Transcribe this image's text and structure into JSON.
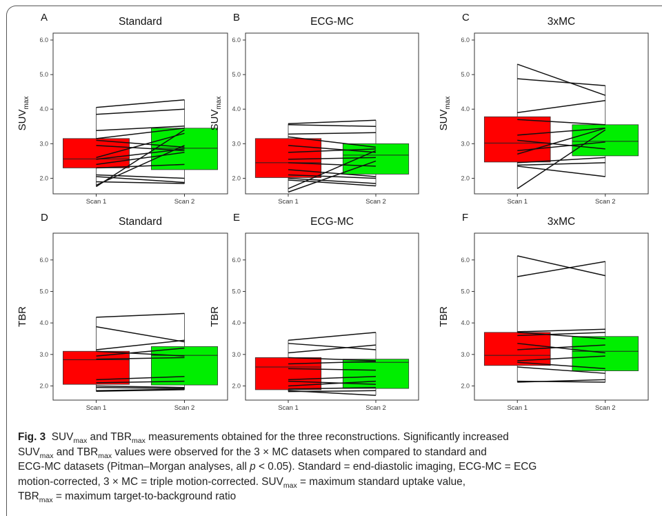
{
  "chart_data": [
    {
      "panel": "A",
      "title": "Standard",
      "type": "box+paired-lines",
      "ylabel": "SUV",
      "ylabel_sub": "max",
      "categories": [
        "Scan 1",
        "Scan 2"
      ],
      "yticks": [
        "2.0",
        "3.0",
        "4.0",
        "5.0",
        "6.0"
      ],
      "ylim": [
        1.55,
        6.2
      ],
      "boxes": [
        {
          "category": "Scan 1",
          "color": "#ff0000",
          "q1": 2.3,
          "median": 2.56,
          "q3": 3.15
        },
        {
          "category": "Scan 2",
          "color": "#00ee00",
          "q1": 2.25,
          "median": 2.87,
          "q3": 3.45
        }
      ],
      "pairs": [
        [
          4.05,
          4.27
        ],
        [
          3.85,
          4.0
        ],
        [
          3.38,
          3.51
        ],
        [
          3.15,
          3.45
        ],
        [
          3.1,
          2.9
        ],
        [
          2.95,
          2.8
        ],
        [
          2.6,
          3.3
        ],
        [
          2.55,
          2.85
        ],
        [
          2.4,
          2.75
        ],
        [
          2.3,
          2.4
        ],
        [
          1.8,
          2.95
        ],
        [
          1.76,
          3.4
        ],
        [
          2.1,
          2.0
        ],
        [
          2.05,
          1.88
        ],
        [
          1.9,
          1.85
        ]
      ]
    },
    {
      "panel": "B",
      "title": "ECG-MC",
      "type": "box+paired-lines",
      "ylabel": "SUV",
      "ylabel_sub": "max",
      "categories": [
        "Scan 1",
        "Scan 2"
      ],
      "yticks": [
        "2.0",
        "3.0",
        "4.0",
        "5.0",
        "6.0"
      ],
      "ylim": [
        1.55,
        6.2
      ],
      "boxes": [
        {
          "category": "Scan 1",
          "color": "#ff0000",
          "q1": 2.02,
          "median": 2.45,
          "q3": 3.15
        },
        {
          "category": "Scan 2",
          "color": "#00ee00",
          "q1": 2.12,
          "median": 2.67,
          "q3": 3.0
        }
      ],
      "pairs": [
        [
          3.58,
          3.68
        ],
        [
          3.55,
          3.5
        ],
        [
          3.28,
          3.32
        ],
        [
          3.2,
          2.9
        ],
        [
          2.95,
          2.75
        ],
        [
          2.75,
          2.85
        ],
        [
          2.55,
          2.6
        ],
        [
          2.45,
          2.35
        ],
        [
          2.25,
          2.05
        ],
        [
          2.1,
          2.0
        ],
        [
          2.0,
          1.85
        ],
        [
          1.95,
          1.78
        ],
        [
          1.7,
          2.8
        ],
        [
          1.6,
          2.5
        ]
      ]
    },
    {
      "panel": "C",
      "title": "3xMC",
      "type": "box+paired-lines",
      "ylabel": "SUV",
      "ylabel_sub": "max",
      "categories": [
        "Scan 1",
        "Scan 2"
      ],
      "yticks": [
        "2.0",
        "3.0",
        "4.0",
        "5.0",
        "6.0"
      ],
      "ylim": [
        1.55,
        6.2
      ],
      "boxes": [
        {
          "category": "Scan 1",
          "color": "#ff0000",
          "q1": 2.47,
          "median": 3.02,
          "q3": 3.78
        },
        {
          "category": "Scan 2",
          "color": "#00ee00",
          "q1": 2.65,
          "median": 3.07,
          "q3": 3.55
        }
      ],
      "pairs": [
        [
          5.3,
          4.4
        ],
        [
          4.88,
          4.68
        ],
        [
          3.9,
          4.25
        ],
        [
          3.7,
          3.55
        ],
        [
          3.25,
          3.45
        ],
        [
          2.8,
          3.05
        ],
        [
          2.7,
          3.45
        ],
        [
          2.45,
          2.6
        ],
        [
          2.38,
          2.45
        ],
        [
          2.35,
          2.05
        ],
        [
          3.1,
          2.85
        ],
        [
          1.7,
          3.4
        ]
      ]
    },
    {
      "panel": "D",
      "title": "Standard",
      "type": "box+paired-lines",
      "ylabel": "TBR",
      "categories": [
        "Scan 1",
        "Scan 2"
      ],
      "yticks": [
        "2.0",
        "3.0",
        "4.0",
        "5.0",
        "6.0"
      ],
      "ylim": [
        1.55,
        6.85
      ],
      "boxes": [
        {
          "category": "Scan 1",
          "color": "#ff0000",
          "q1": 2.05,
          "median": 2.83,
          "q3": 3.1
        },
        {
          "category": "Scan 2",
          "color": "#00ee00",
          "q1": 2.03,
          "median": 2.97,
          "q3": 3.25
        }
      ],
      "pairs": [
        [
          4.18,
          4.3
        ],
        [
          3.88,
          3.4
        ],
        [
          3.15,
          3.45
        ],
        [
          3.1,
          2.95
        ],
        [
          2.95,
          3.2
        ],
        [
          2.85,
          2.9
        ],
        [
          2.2,
          2.3
        ],
        [
          2.1,
          2.15
        ],
        [
          2.0,
          1.95
        ],
        [
          1.95,
          1.92
        ],
        [
          1.85,
          1.9
        ],
        [
          1.83,
          1.88
        ]
      ]
    },
    {
      "panel": "E",
      "title": "ECG-MC",
      "type": "box+paired-lines",
      "ylabel": "TBR",
      "categories": [
        "Scan 1",
        "Scan 2"
      ],
      "yticks": [
        "2.0",
        "3.0",
        "4.0",
        "5.0",
        "6.0"
      ],
      "ylim": [
        1.55,
        6.85
      ],
      "boxes": [
        {
          "category": "Scan 1",
          "color": "#ff0000",
          "q1": 1.88,
          "median": 2.6,
          "q3": 2.9
        },
        {
          "category": "Scan 2",
          "color": "#00ee00",
          "q1": 1.92,
          "median": 2.75,
          "q3": 2.85
        }
      ],
      "pairs": [
        [
          3.45,
          3.7
        ],
        [
          3.35,
          3.15
        ],
        [
          3.05,
          3.3
        ],
        [
          2.9,
          2.8
        ],
        [
          2.7,
          2.78
        ],
        [
          2.55,
          2.5
        ],
        [
          2.2,
          2.3
        ],
        [
          2.15,
          2.05
        ],
        [
          1.9,
          1.95
        ],
        [
          1.85,
          1.7
        ],
        [
          1.82,
          1.85
        ],
        [
          2.0,
          2.15
        ]
      ]
    },
    {
      "panel": "F",
      "title": "3xMC",
      "type": "box+paired-lines",
      "ylabel": "TBR",
      "categories": [
        "Scan 1",
        "Scan 2"
      ],
      "yticks": [
        "2.0",
        "3.0",
        "4.0",
        "5.0",
        "6.0"
      ],
      "ylim": [
        1.55,
        6.85
      ],
      "boxes": [
        {
          "category": "Scan 1",
          "color": "#ff0000",
          "q1": 2.65,
          "median": 2.97,
          "q3": 3.7
        },
        {
          "category": "Scan 2",
          "color": "#00ee00",
          "q1": 2.48,
          "median": 3.1,
          "q3": 3.57
        }
      ],
      "pairs": [
        [
          6.13,
          5.5
        ],
        [
          5.47,
          5.95
        ],
        [
          3.72,
          3.8
        ],
        [
          3.7,
          3.5
        ],
        [
          3.6,
          3.7
        ],
        [
          3.35,
          3.05
        ],
        [
          3.15,
          3.3
        ],
        [
          2.8,
          2.95
        ],
        [
          2.75,
          2.55
        ],
        [
          2.6,
          2.4
        ],
        [
          2.15,
          2.12
        ],
        [
          2.12,
          2.2
        ]
      ]
    }
  ],
  "caption": {
    "fig_label": "Fig. 3",
    "suv": "SUV",
    "tbr": "TBR",
    "max_sub": "max",
    "l1_mid": " and ",
    "l1_end": " measurements obtained for the three reconstructions. Significantly increased",
    "l2_mid": " and ",
    "l2_end": " values were observed for the 3 × MC datasets when compared to standard and",
    "l3_a": "ECG-MC datasets (Pitman–Morgan analyses, all ",
    "l3_p": "p",
    "l3_b": " < 0.05). Standard = end-diastolic imaging, ECG-MC = ECG",
    "l4": "motion-corrected, 3 × MC = triple motion-corrected. SUV",
    "l4_end": " = maximum standard uptake value,",
    "l5_end": " = maximum target-to-background ratio"
  }
}
